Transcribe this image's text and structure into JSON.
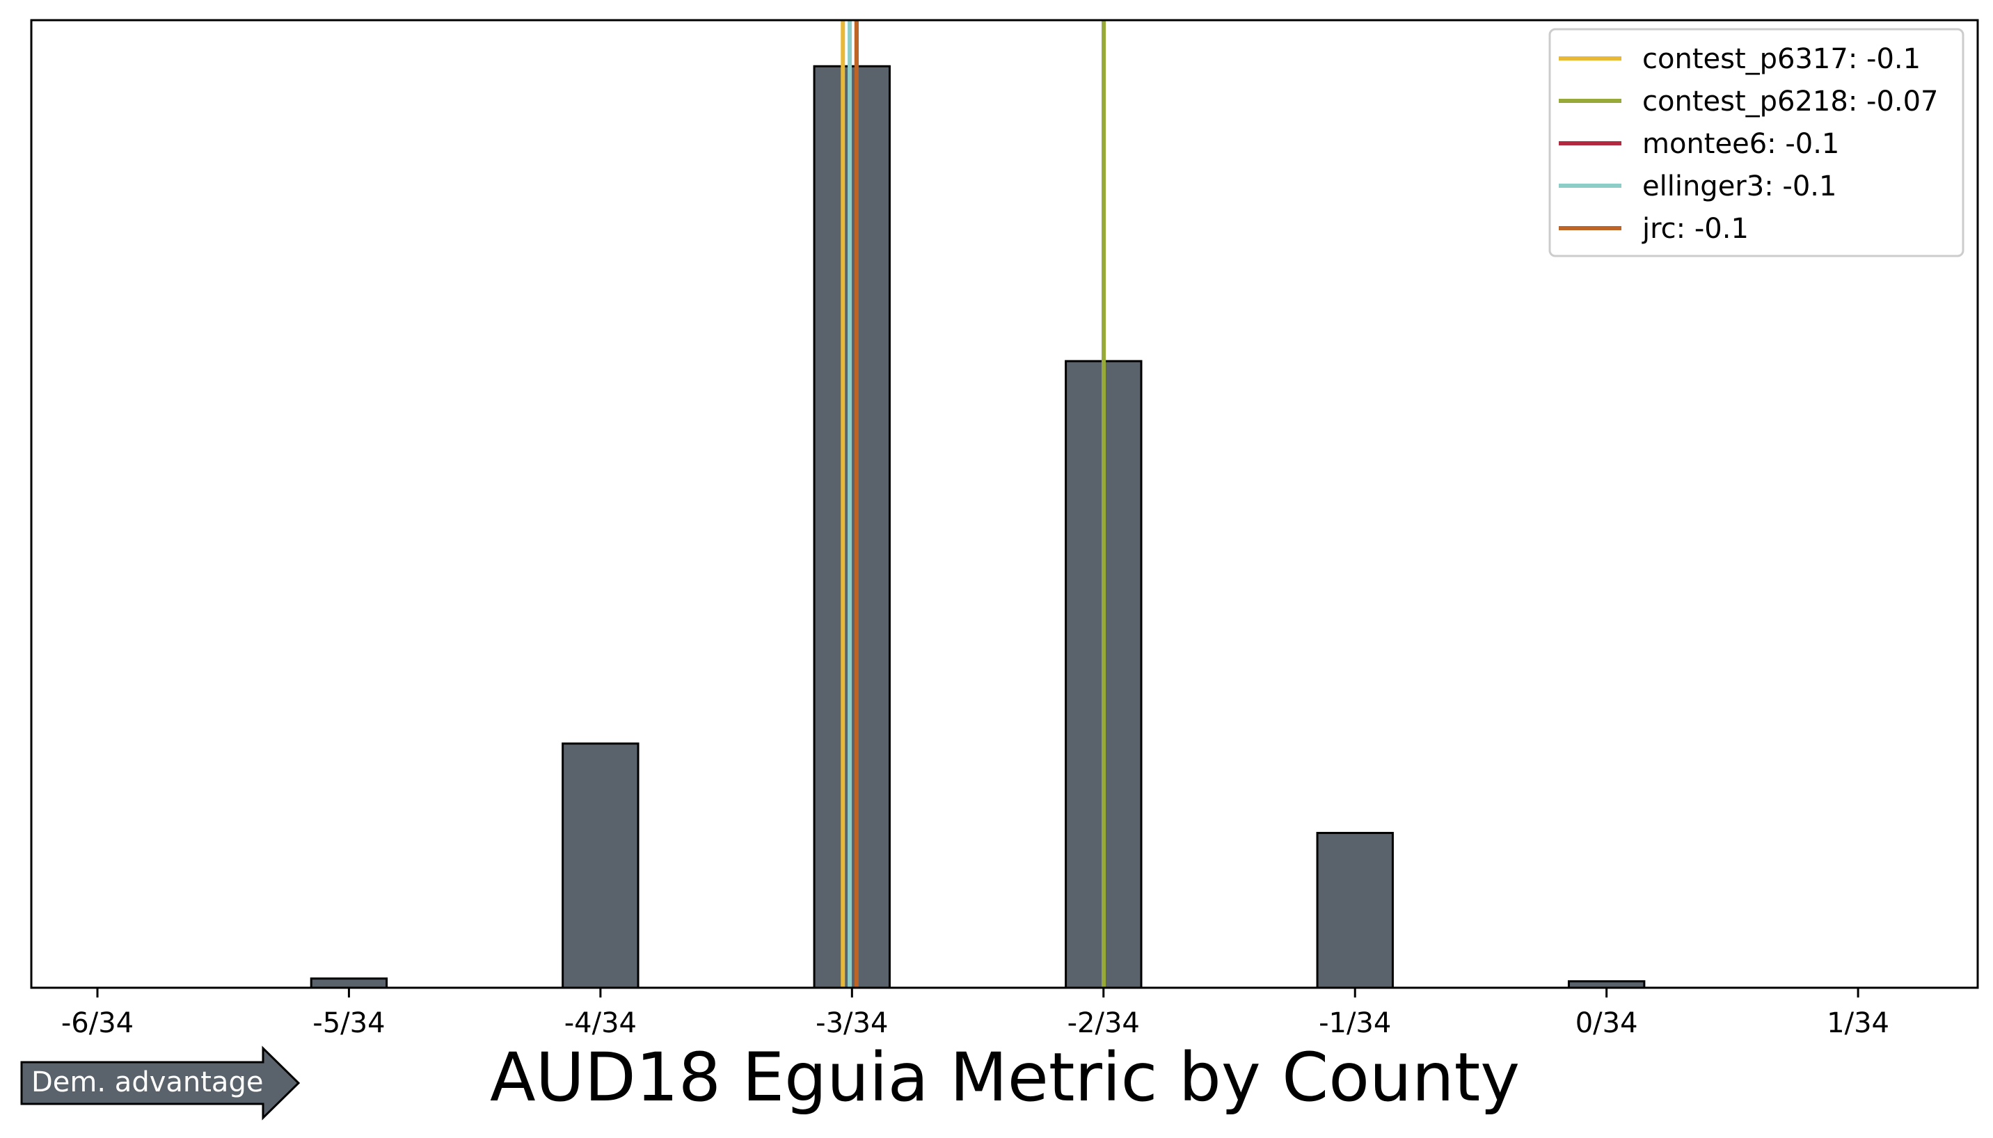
{
  "chart_data": {
    "type": "bar",
    "title": "AUD18 Eguia Metric by County",
    "xlabel": "",
    "ylabel": "",
    "x_tick_labels": [
      "-6/34",
      "-5/34",
      "-4/34",
      "-3/34",
      "-2/34",
      "-1/34",
      "0/34",
      "1/34"
    ],
    "xlim": [
      -0.1842,
      0.0434
    ],
    "ylim": [
      0,
      1.05
    ],
    "y_ticks_visible": false,
    "bar_width": 0.00882,
    "bar_fill_color": "#5a636c",
    "bar_edge_color": "#000000",
    "bins": [
      {
        "center": -0.17647,
        "value": 0.0
      },
      {
        "center": -0.16235,
        "value": 0.0
      },
      {
        "center": -0.14706,
        "value": 0.01
      },
      {
        "center": -0.13294,
        "value": 0.0
      },
      {
        "center": -0.11765,
        "value": 0.265
      },
      {
        "center": -0.10353,
        "value": 0.0
      },
      {
        "center": -0.08824,
        "value": 1.0
      },
      {
        "center": -0.07412,
        "value": 0.0
      },
      {
        "center": -0.05882,
        "value": 0.68
      },
      {
        "center": -0.04471,
        "value": 0.0
      },
      {
        "center": -0.02941,
        "value": 0.168
      },
      {
        "center": -0.01529,
        "value": 0.0
      },
      {
        "center": 0.0,
        "value": 0.007
      },
      {
        "center": 0.01412,
        "value": 0.0
      },
      {
        "center": 0.02941,
        "value": 0.0
      }
    ],
    "reference_lines": [
      {
        "name": "contest_p6317: -0.1",
        "x": -0.0893,
        "color": "#e8b837"
      },
      {
        "name": "contest_p6218: -0.07",
        "x": -0.0588,
        "color": "#97aa39"
      },
      {
        "name": "montee6: -0.1",
        "x": -0.0877,
        "color": "#b3293f"
      },
      {
        "name": "ellinger3: -0.1",
        "x": -0.0885,
        "color": "#8dcdc8"
      },
      {
        "name": "jrc: -0.1",
        "x": -0.0877,
        "color": "#bf6427"
      }
    ],
    "legend_position": "top-right",
    "grid": false
  },
  "annotation": {
    "arrow_label": "Dem. advantage",
    "arrow_color": "#5a636c"
  }
}
